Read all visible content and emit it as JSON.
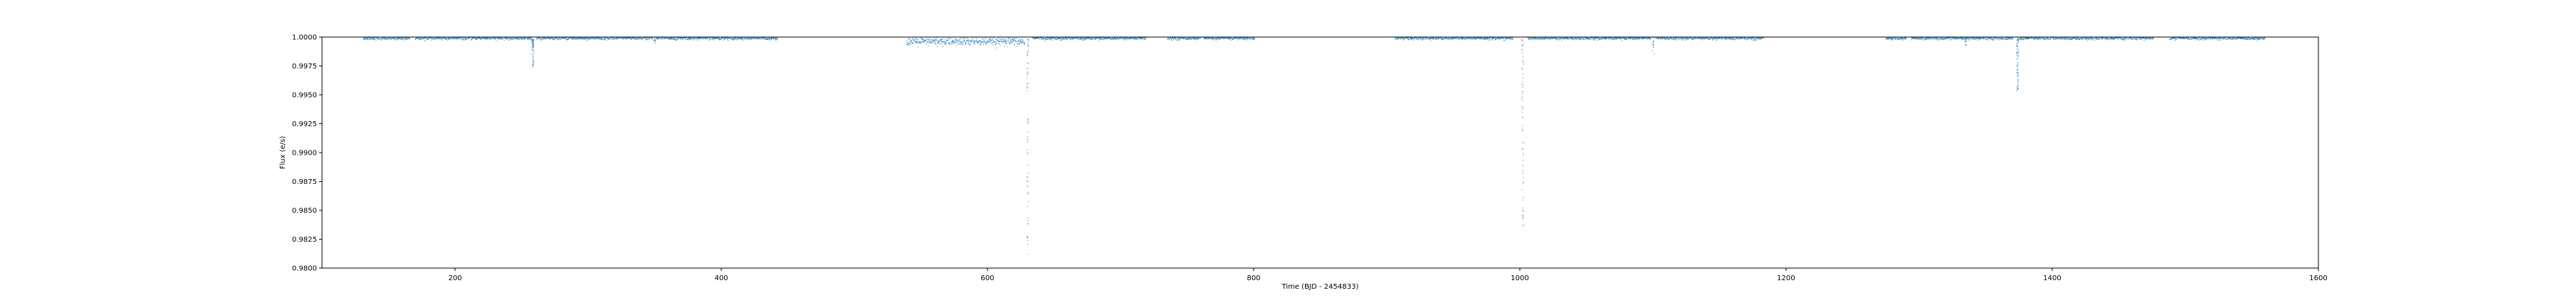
{
  "chart_data": {
    "type": "scatter",
    "title": "",
    "xlabel": "Time (BJD - 2454833)",
    "ylabel": "Flux (e/s)",
    "xlim": [
      100,
      1600
    ],
    "ylim": [
      0.98,
      1.0
    ],
    "xticks": [
      200,
      400,
      600,
      800,
      1000,
      1200,
      1400,
      1600
    ],
    "yticks": [
      "0.9800",
      "0.9825",
      "0.9850",
      "0.9875",
      "0.9900",
      "0.9925",
      "0.9950",
      "0.9975",
      "1.0000"
    ],
    "grid": false,
    "legend": "none",
    "marker_color": "#1f77b4",
    "quarters": [
      [
        131,
        166
      ],
      [
        170,
        258
      ],
      [
        261,
        348
      ],
      [
        351,
        442
      ],
      [
        539,
        628
      ],
      [
        634,
        719
      ],
      [
        735,
        760
      ],
      [
        762,
        801
      ],
      [
        906,
        995
      ],
      [
        1006,
        1098
      ],
      [
        1102,
        1183
      ],
      [
        1275,
        1290
      ],
      [
        1294,
        1370
      ],
      [
        1374,
        1476
      ],
      [
        1488,
        1560
      ]
    ],
    "noise": [
      {
        "x0": 539,
        "x1": 628,
        "sigma": 0.00018,
        "offset": -0.0004
      },
      {
        "x0": 131,
        "x1": 442,
        "sigma": 7e-05,
        "offset": -0.0001
      },
      {
        "x0": 634,
        "x1": 1560,
        "sigma": 7e-05,
        "offset": -0.0001
      }
    ],
    "transits": [
      {
        "x": 258.5,
        "depth": 0.0025
      },
      {
        "x": 630.2,
        "depth": 0.019
      },
      {
        "x": 1002.1,
        "depth": 0.0165
      },
      {
        "x": 1374.0,
        "depth": 0.0045
      }
    ],
    "dips": [
      {
        "x": 350,
        "depth": 0.0005
      },
      {
        "x": 1100,
        "depth": 0.0015
      },
      {
        "x": 1335,
        "depth": 0.0008
      }
    ]
  }
}
